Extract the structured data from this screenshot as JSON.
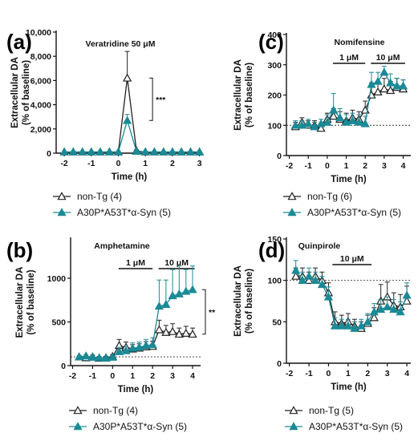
{
  "colors": {
    "tg": "#1a8a96",
    "nontg": "#222222",
    "open_marker_fill": "#ffffff"
  },
  "chart_data": [
    {
      "panel": "(a)",
      "type": "line",
      "annotation": "Veratridine 50 μM",
      "significance": "***",
      "ylabel": [
        "Extracellular DA",
        "(% of baseline)"
      ],
      "xlabel": "Time (h)",
      "xlim": [
        -2.3,
        3.1
      ],
      "ylim": [
        0,
        10000
      ],
      "xticks": [
        -2,
        -1,
        0,
        1,
        2,
        3
      ],
      "xticklabels": [
        "-2",
        "-1",
        "0",
        "1",
        "2",
        "3"
      ],
      "yticks": [
        0,
        2000,
        4000,
        6000,
        8000,
        10000
      ],
      "yticklabels": [
        "0",
        "2,000",
        "4,000",
        "6,000",
        "8,000",
        "10,000"
      ],
      "baseline": null,
      "bars": [],
      "x": [
        -2.0,
        -1.67,
        -1.33,
        -1.0,
        -0.67,
        -0.33,
        0.0,
        0.33,
        0.67,
        1.0,
        1.33,
        1.67,
        2.0,
        2.33,
        2.67,
        3.0
      ],
      "series": [
        {
          "name": "non-Tg (4)",
          "marker": "open",
          "values": [
            100,
            100,
            100,
            100,
            100,
            100,
            100,
            6200,
            200,
            100,
            100,
            100,
            100,
            100,
            100,
            100
          ],
          "errors": [
            30,
            30,
            30,
            30,
            30,
            30,
            30,
            2200,
            60,
            30,
            30,
            30,
            30,
            30,
            30,
            30
          ]
        },
        {
          "name": "A30P*A53T*α-Syn (5)",
          "marker": "filled",
          "values": [
            100,
            100,
            100,
            100,
            100,
            100,
            100,
            2700,
            150,
            100,
            100,
            100,
            100,
            100,
            100,
            100
          ],
          "errors": [
            30,
            30,
            30,
            30,
            30,
            30,
            30,
            500,
            50,
            30,
            30,
            30,
            30,
            30,
            30,
            30
          ]
        }
      ]
    },
    {
      "panel": "(b)",
      "type": "line",
      "annotation": "Amphetamine",
      "significance": "**",
      "ylabel": [
        "Extracellular DA",
        "(% of baseline)"
      ],
      "xlabel": "Time (h)",
      "xlim": [
        -2.1,
        4.4
      ],
      "ylim": [
        0,
        1450
      ],
      "xticks": [
        -2,
        -1,
        0,
        1,
        2,
        3,
        4
      ],
      "xticklabels": [
        "-2",
        "-1",
        "0",
        "1",
        "2",
        "3",
        "4"
      ],
      "yticks": [
        0,
        500,
        1000
      ],
      "yticklabels": [
        "0",
        "500",
        "1000"
      ],
      "baseline": 100,
      "bars": [
        {
          "label": "1 μM",
          "x0": 0.3,
          "x1": 2.0
        },
        {
          "label": "10 μM",
          "x0": 2.3,
          "x1": 4.1
        }
      ],
      "x": [
        -1.67,
        -1.33,
        -1.0,
        -0.67,
        -0.33,
        0.0,
        0.33,
        0.67,
        1.0,
        1.33,
        1.67,
        2.0,
        2.33,
        2.67,
        3.0,
        3.33,
        3.67,
        4.0
      ],
      "series": [
        {
          "name": "non-Tg (4)",
          "marker": "open",
          "values": [
            100,
            90,
            100,
            85,
            90,
            105,
            230,
            210,
            190,
            200,
            215,
            220,
            410,
            380,
            390,
            360,
            370,
            360
          ],
          "errors": [
            15,
            15,
            20,
            15,
            15,
            20,
            70,
            60,
            50,
            50,
            60,
            60,
            110,
            80,
            90,
            70,
            80,
            70
          ]
        },
        {
          "name": "A30P*A53T*α-Syn (5)",
          "marker": "filled",
          "values": [
            100,
            110,
            95,
            90,
            85,
            95,
            160,
            170,
            200,
            210,
            230,
            240,
            680,
            700,
            800,
            820,
            850,
            870
          ],
          "errors": [
            15,
            15,
            15,
            15,
            15,
            20,
            50,
            50,
            60,
            60,
            70,
            80,
            300,
            280,
            300,
            320,
            250,
            270
          ]
        }
      ]
    },
    {
      "panel": "(c)",
      "type": "line",
      "annotation": "Nomifensine",
      "significance": "",
      "ylabel": [
        "Extracellular DA",
        "(% of baseline)"
      ],
      "xlabel": "Time (h)",
      "xlim": [
        -2.15,
        4.4
      ],
      "ylim": [
        0,
        400
      ],
      "xticks": [
        -2,
        -1,
        0,
        1,
        2,
        3,
        4
      ],
      "xticklabels": [
        "-2",
        "-1",
        "0",
        "1",
        "2",
        "3",
        "4"
      ],
      "yticks": [
        0,
        100,
        200,
        300,
        400
      ],
      "yticklabels": [
        "0",
        "100",
        "200",
        "300",
        "400"
      ],
      "baseline": 100,
      "bars": [
        {
          "label": "1 μM",
          "x0": 0.3,
          "x1": 2.0
        },
        {
          "label": "10 μM",
          "x0": 2.3,
          "x1": 4.1
        }
      ],
      "x": [
        -1.67,
        -1.33,
        -1.0,
        -0.67,
        -0.33,
        0.0,
        0.33,
        0.67,
        1.0,
        1.33,
        1.67,
        2.0,
        2.33,
        2.67,
        3.0,
        3.33,
        3.67,
        4.0
      ],
      "series": [
        {
          "name": "non-Tg (6)",
          "marker": "open",
          "values": [
            95,
            110,
            100,
            100,
            90,
            120,
            130,
            120,
            115,
            125,
            120,
            150,
            200,
            210,
            220,
            215,
            225,
            220
          ],
          "errors": [
            15,
            15,
            15,
            15,
            15,
            20,
            25,
            25,
            25,
            25,
            25,
            30,
            40,
            35,
            35,
            30,
            30,
            30
          ]
        },
        {
          "name": "A30P*A53T*α-Syn (5)",
          "marker": "filled",
          "values": [
            100,
            100,
            105,
            95,
            105,
            110,
            150,
            125,
            110,
            115,
            110,
            105,
            235,
            245,
            275,
            240,
            230,
            230
          ],
          "errors": [
            15,
            15,
            15,
            15,
            15,
            25,
            55,
            30,
            25,
            25,
            25,
            25,
            40,
            30,
            20,
            30,
            25,
            20
          ]
        }
      ]
    },
    {
      "panel": "(d)",
      "type": "line",
      "annotation": "Quinpirole",
      "significance": "",
      "ylabel": [
        "Extracellular DA",
        "(% of baseline)"
      ],
      "xlabel": "Time (h)",
      "xlim": [
        -2.15,
        4.2
      ],
      "ylim": [
        0,
        150
      ],
      "xticks": [
        -2,
        -1,
        0,
        1,
        2,
        3,
        4
      ],
      "xticklabels": [
        "-2",
        "-1",
        "0",
        "1",
        "2",
        "3",
        "4"
      ],
      "yticks": [
        0,
        50,
        100,
        150
      ],
      "yticklabels": [
        "0",
        "50",
        "100",
        "150"
      ],
      "baseline": 100,
      "bars": [
        {
          "label": "10 μM",
          "x0": 0.2,
          "x1": 2.2
        }
      ],
      "x": [
        -1.67,
        -1.33,
        -1.0,
        -0.67,
        -0.33,
        0.0,
        0.33,
        0.67,
        1.0,
        1.33,
        1.67,
        2.0,
        2.33,
        2.67,
        3.0,
        3.33,
        3.67,
        4.0
      ],
      "series": [
        {
          "name": "non-Tg (5)",
          "marker": "open",
          "values": [
            105,
            105,
            100,
            105,
            100,
            85,
            50,
            48,
            50,
            45,
            42,
            48,
            55,
            75,
            80,
            70,
            68,
            75
          ],
          "errors": [
            10,
            10,
            10,
            10,
            10,
            12,
            12,
            10,
            10,
            8,
            8,
            10,
            12,
            20,
            18,
            15,
            15,
            18
          ]
        },
        {
          "name": "A30P*A53T*α-Syn (5)",
          "marker": "filled",
          "values": [
            112,
            100,
            105,
            100,
            95,
            80,
            45,
            45,
            45,
            42,
            45,
            50,
            62,
            65,
            68,
            65,
            62,
            82
          ],
          "errors": [
            12,
            10,
            10,
            10,
            10,
            12,
            10,
            8,
            8,
            8,
            8,
            10,
            10,
            12,
            12,
            12,
            12,
            15
          ]
        }
      ]
    }
  ],
  "legends": [
    {
      "items": [
        "non-Tg (4)",
        "A30P*A53T*α-Syn (5)"
      ]
    },
    {
      "items": [
        "non-Tg (4)",
        "A30P*A53T*α-Syn (5)"
      ]
    },
    {
      "items": [
        "non-Tg (6)",
        "A30P*A53T*α-Syn (5)"
      ]
    },
    {
      "items": [
        "non-Tg (5)",
        "A30P*A53T*α-Syn (5)"
      ]
    }
  ]
}
